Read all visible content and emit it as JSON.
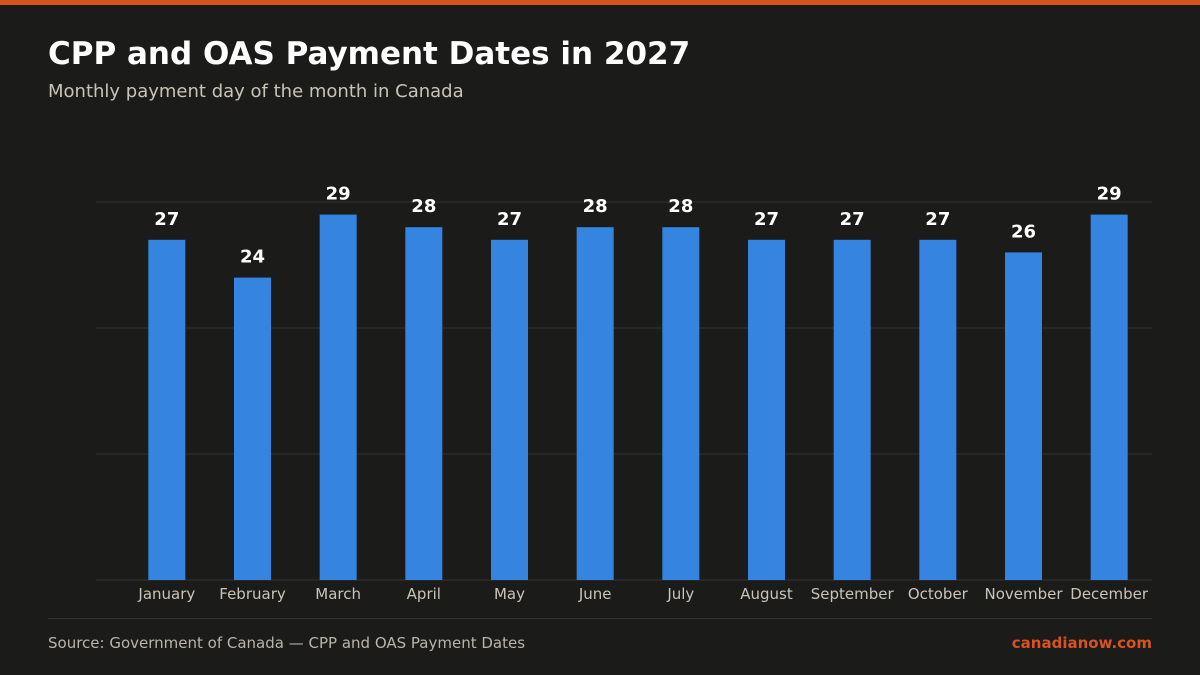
{
  "header": {
    "title": "CPP and OAS Payment Dates in 2027",
    "subtitle": "Monthly payment day of the month in Canada"
  },
  "footer": {
    "source": "Source: Government of Canada — CPP and OAS Payment Dates",
    "brand": "canadianow.com"
  },
  "colors": {
    "background": "#1b1b1a",
    "accent": "#d9531e",
    "bar": "#3585e0",
    "grid": "#333331",
    "text": "#ffffff",
    "muted_text": "#c9c4b8"
  },
  "chart_data": {
    "type": "bar",
    "categories": [
      "January",
      "February",
      "March",
      "April",
      "May",
      "June",
      "July",
      "August",
      "September",
      "October",
      "November",
      "December"
    ],
    "values": [
      27,
      24,
      29,
      28,
      27,
      28,
      28,
      27,
      27,
      27,
      26,
      29
    ],
    "title": "CPP and OAS Payment Dates in 2027",
    "subtitle": "Monthly payment day of the month in Canada",
    "xlabel": "",
    "ylabel": "",
    "ylim": [
      0,
      30
    ],
    "grid": true,
    "data_labels": true
  }
}
